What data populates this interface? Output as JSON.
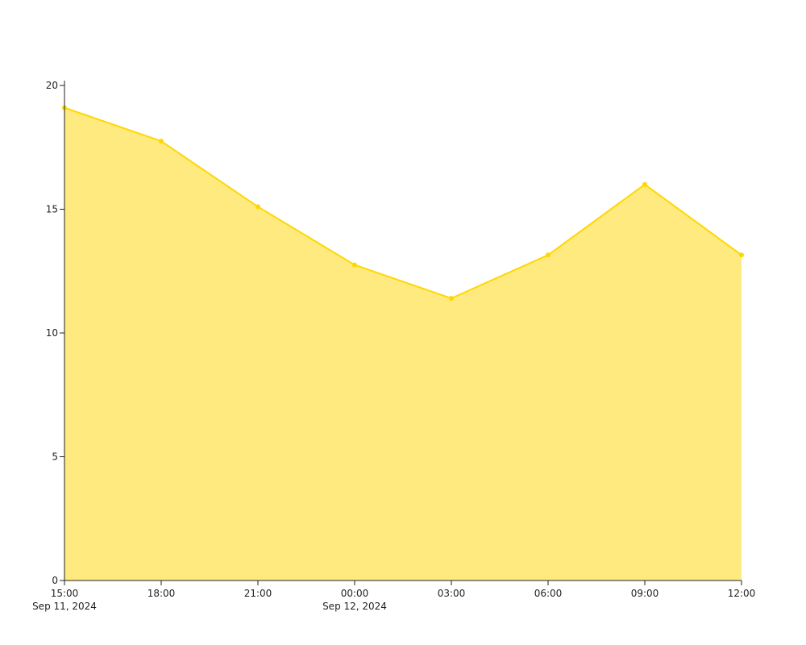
{
  "chart_data": {
    "type": "area",
    "x_ticks": [
      {
        "time": "15:00",
        "date": "Sep 11, 2024"
      },
      {
        "time": "18:00",
        "date": ""
      },
      {
        "time": "21:00",
        "date": ""
      },
      {
        "time": "00:00",
        "date": "Sep 12, 2024"
      },
      {
        "time": "03:00",
        "date": ""
      },
      {
        "time": "06:00",
        "date": ""
      },
      {
        "time": "09:00",
        "date": ""
      },
      {
        "time": "12:00",
        "date": ""
      }
    ],
    "y_ticks": [
      "0",
      "5",
      "10",
      "15",
      "20"
    ],
    "ylim": [
      0,
      20
    ],
    "series": [
      {
        "x": [
          "2024-09-11 15:00",
          "2024-09-11 18:00",
          "2024-09-11 21:00",
          "2024-09-12 00:00",
          "2024-09-12 03:00",
          "2024-09-12 06:00",
          "2024-09-12 09:00",
          "2024-09-12 12:00"
        ],
        "values": [
          19.1,
          17.75,
          15.1,
          12.75,
          11.4,
          13.15,
          16.0,
          13.15
        ],
        "line_color": "#ffd700",
        "fill_color": "#ffea80"
      }
    ],
    "grid": false,
    "legend": "none"
  }
}
